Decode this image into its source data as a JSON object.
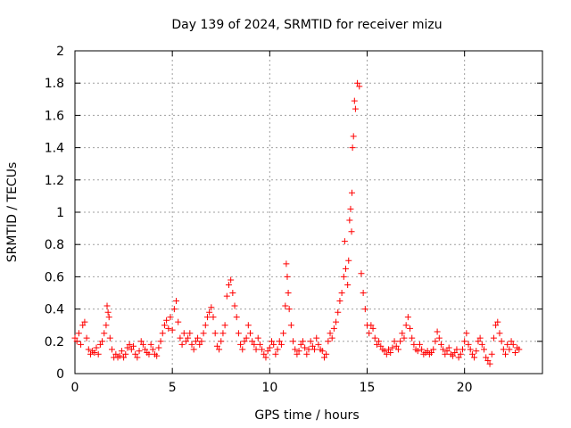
{
  "chart_data": {
    "type": "scatter",
    "title": "Day 139 of 2024, SRMTID for receiver mizu",
    "xlabel": "GPS time / hours",
    "ylabel": "SRMTID / TECUs",
    "xlim": [
      0,
      24
    ],
    "ylim": [
      0,
      2
    ],
    "xticks": [
      0,
      5,
      10,
      15,
      20
    ],
    "yticks": [
      0,
      0.2,
      0.4,
      0.6,
      0.8,
      1,
      1.2,
      1.4,
      1.6,
      1.8,
      2
    ],
    "xtick_labels": [
      "0",
      "5",
      "10",
      "15",
      "20"
    ],
    "ytick_labels": [
      "0",
      "0.2",
      "0.4",
      "0.6",
      "0.8",
      "1",
      "1.2",
      "1.4",
      "1.6",
      "1.8",
      "2"
    ],
    "grid": true,
    "marker": "+",
    "color": "#ff0000",
    "series": [
      {
        "name": "SRMTID",
        "x": [
          0.0,
          0.1,
          0.2,
          0.3,
          0.4,
          0.5,
          0.6,
          0.7,
          0.8,
          0.9,
          1.0,
          1.1,
          1.2,
          1.3,
          1.4,
          1.5,
          1.6,
          1.65,
          1.7,
          1.75,
          1.8,
          1.9,
          2.0,
          2.1,
          2.2,
          2.3,
          2.4,
          2.5,
          2.6,
          2.7,
          2.8,
          2.9,
          3.0,
          3.1,
          3.2,
          3.3,
          3.4,
          3.5,
          3.6,
          3.7,
          3.8,
          3.9,
          4.0,
          4.1,
          4.2,
          4.3,
          4.4,
          4.5,
          4.6,
          4.7,
          4.8,
          4.9,
          5.0,
          5.1,
          5.2,
          5.3,
          5.4,
          5.5,
          5.6,
          5.7,
          5.8,
          5.9,
          6.0,
          6.1,
          6.2,
          6.3,
          6.4,
          6.5,
          6.6,
          6.7,
          6.8,
          6.9,
          7.0,
          7.1,
          7.2,
          7.3,
          7.4,
          7.5,
          7.6,
          7.7,
          7.8,
          7.9,
          8.0,
          8.1,
          8.2,
          8.3,
          8.4,
          8.5,
          8.6,
          8.7,
          8.8,
          8.9,
          9.0,
          9.1,
          9.2,
          9.3,
          9.4,
          9.5,
          9.6,
          9.7,
          9.8,
          9.9,
          10.0,
          10.1,
          10.2,
          10.3,
          10.4,
          10.5,
          10.6,
          10.7,
          10.8,
          10.85,
          10.9,
          10.95,
          11.0,
          11.1,
          11.2,
          11.3,
          11.4,
          11.5,
          11.6,
          11.7,
          11.8,
          11.9,
          12.0,
          12.1,
          12.2,
          12.3,
          12.4,
          12.5,
          12.6,
          12.7,
          12.8,
          12.9,
          13.0,
          13.1,
          13.2,
          13.3,
          13.4,
          13.5,
          13.6,
          13.7,
          13.8,
          13.85,
          13.9,
          14.0,
          14.05,
          14.1,
          14.15,
          14.2,
          14.22,
          14.25,
          14.3,
          14.35,
          14.4,
          14.5,
          14.6,
          14.7,
          14.8,
          14.9,
          15.0,
          15.1,
          15.2,
          15.3,
          15.4,
          15.5,
          15.6,
          15.7,
          15.8,
          15.9,
          16.0,
          16.1,
          16.2,
          16.3,
          16.4,
          16.5,
          16.6,
          16.7,
          16.8,
          16.9,
          17.0,
          17.1,
          17.2,
          17.3,
          17.4,
          17.5,
          17.6,
          17.7,
          17.8,
          17.9,
          18.0,
          18.1,
          18.2,
          18.3,
          18.4,
          18.5,
          18.6,
          18.7,
          18.8,
          18.9,
          19.0,
          19.1,
          19.2,
          19.3,
          19.4,
          19.5,
          19.6,
          19.7,
          19.8,
          19.9,
          20.0,
          20.1,
          20.2,
          20.3,
          20.4,
          20.5,
          20.6,
          20.7,
          20.8,
          20.9,
          21.0,
          21.1,
          21.2,
          21.3,
          21.4,
          21.5,
          21.6,
          21.7,
          21.8,
          21.9,
          22.0,
          22.1,
          22.2,
          22.3,
          22.4,
          22.5,
          22.6,
          22.7,
          22.8
        ],
        "y": [
          0.22,
          0.2,
          0.25,
          0.18,
          0.3,
          0.32,
          0.22,
          0.15,
          0.12,
          0.14,
          0.13,
          0.16,
          0.12,
          0.18,
          0.2,
          0.25,
          0.3,
          0.42,
          0.38,
          0.35,
          0.22,
          0.15,
          0.1,
          0.12,
          0.1,
          0.11,
          0.14,
          0.1,
          0.12,
          0.16,
          0.18,
          0.15,
          0.17,
          0.12,
          0.1,
          0.14,
          0.2,
          0.18,
          0.15,
          0.13,
          0.12,
          0.18,
          0.15,
          0.12,
          0.11,
          0.16,
          0.2,
          0.25,
          0.3,
          0.33,
          0.28,
          0.35,
          0.27,
          0.4,
          0.45,
          0.32,
          0.22,
          0.18,
          0.25,
          0.2,
          0.22,
          0.25,
          0.18,
          0.15,
          0.2,
          0.22,
          0.18,
          0.2,
          0.25,
          0.3,
          0.35,
          0.38,
          0.41,
          0.35,
          0.25,
          0.17,
          0.15,
          0.2,
          0.25,
          0.3,
          0.48,
          0.55,
          0.58,
          0.5,
          0.42,
          0.35,
          0.25,
          0.18,
          0.15,
          0.2,
          0.22,
          0.3,
          0.25,
          0.2,
          0.18,
          0.15,
          0.22,
          0.18,
          0.15,
          0.12,
          0.1,
          0.14,
          0.16,
          0.2,
          0.18,
          0.12,
          0.15,
          0.2,
          0.18,
          0.25,
          0.42,
          0.68,
          0.6,
          0.5,
          0.4,
          0.3,
          0.2,
          0.15,
          0.12,
          0.14,
          0.18,
          0.2,
          0.16,
          0.12,
          0.15,
          0.2,
          0.17,
          0.15,
          0.22,
          0.18,
          0.15,
          0.14,
          0.1,
          0.12,
          0.2,
          0.25,
          0.22,
          0.28,
          0.32,
          0.38,
          0.45,
          0.5,
          0.6,
          0.82,
          0.65,
          0.55,
          0.7,
          0.95,
          1.02,
          0.88,
          1.12,
          1.4,
          1.47,
          1.69,
          1.64,
          1.8,
          1.78,
          0.62,
          0.5,
          0.4,
          0.3,
          0.25,
          0.3,
          0.28,
          0.22,
          0.18,
          0.2,
          0.17,
          0.15,
          0.14,
          0.12,
          0.15,
          0.13,
          0.16,
          0.2,
          0.17,
          0.15,
          0.2,
          0.25,
          0.22,
          0.3,
          0.35,
          0.28,
          0.22,
          0.18,
          0.15,
          0.14,
          0.18,
          0.15,
          0.12,
          0.13,
          0.14,
          0.12,
          0.13,
          0.15,
          0.2,
          0.26,
          0.22,
          0.18,
          0.15,
          0.12,
          0.14,
          0.16,
          0.12,
          0.11,
          0.13,
          0.15,
          0.1,
          0.12,
          0.15,
          0.2,
          0.25,
          0.18,
          0.15,
          0.12,
          0.1,
          0.14,
          0.2,
          0.22,
          0.18,
          0.15,
          0.1,
          0.08,
          0.06,
          0.12,
          0.22,
          0.3,
          0.32,
          0.25,
          0.2,
          0.15,
          0.12,
          0.18,
          0.15,
          0.2,
          0.18,
          0.13,
          0.16,
          0.15
        ]
      }
    ]
  }
}
